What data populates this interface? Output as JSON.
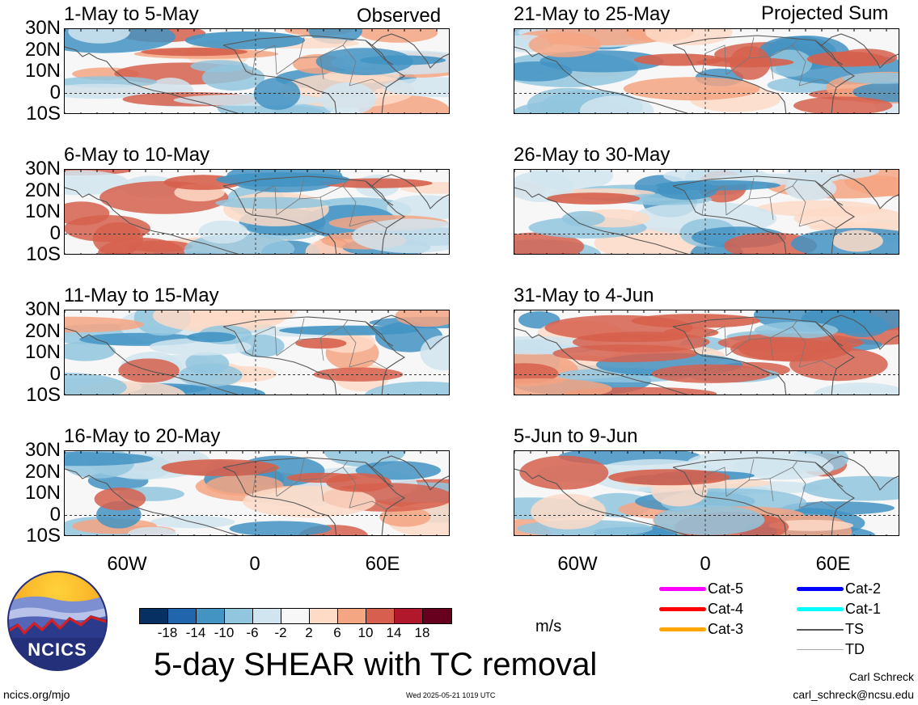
{
  "header_left": "Observed",
  "header_right": "Projected Sum",
  "lat_labels": [
    "30N",
    "20N",
    "10N",
    "0",
    "10S"
  ],
  "lon_labels": [
    "60W",
    "0",
    "60E"
  ],
  "panels": [
    {
      "label": "1-May to 5-May",
      "col": 0,
      "row": 0
    },
    {
      "label": "6-May to 10-May",
      "col": 0,
      "row": 1
    },
    {
      "label": "11-May to 15-May",
      "col": 0,
      "row": 2
    },
    {
      "label": "16-May to 20-May",
      "col": 0,
      "row": 3
    },
    {
      "label": "21-May to 25-May",
      "col": 1,
      "row": 0
    },
    {
      "label": "26-May to 30-May",
      "col": 1,
      "row": 1
    },
    {
      "label": "31-May to 4-Jun",
      "col": 1,
      "row": 2
    },
    {
      "label": "5-Jun to 9-Jun",
      "col": 1,
      "row": 3
    }
  ],
  "colorbar": {
    "colors": [
      "#053061",
      "#2166ac",
      "#4393c3",
      "#92c5de",
      "#d1e5f0",
      "#f7f7f7",
      "#fddbc7",
      "#f4a582",
      "#d6604d",
      "#b2182b",
      "#67001f"
    ],
    "labels": [
      "-18",
      "-14",
      "-10",
      "-6",
      "-2",
      "2",
      "6",
      "10",
      "14",
      "18"
    ],
    "unit": "m/s"
  },
  "legend": [
    {
      "label": "Cat-5",
      "color": "#ff00ff"
    },
    {
      "label": "Cat-4",
      "color": "#ff0000"
    },
    {
      "label": "Cat-3",
      "color": "#ffa500"
    },
    {
      "label": "Cat-2",
      "color": "#0000ff"
    },
    {
      "label": "Cat-1",
      "color": "#00ffff"
    },
    {
      "label": "TS",
      "color": "#555555"
    },
    {
      "label": "TD",
      "color": "#aaaaaa"
    }
  ],
  "logo_text": "NCICS",
  "main_title": "5-day SHEAR with TC removal",
  "url": "ncics.org/mjo",
  "timestamp": "Wed 2025-05-21 1019 UTC",
  "author": "Carl Schreck",
  "email": "carl_schreck@ncsu.edu"
}
